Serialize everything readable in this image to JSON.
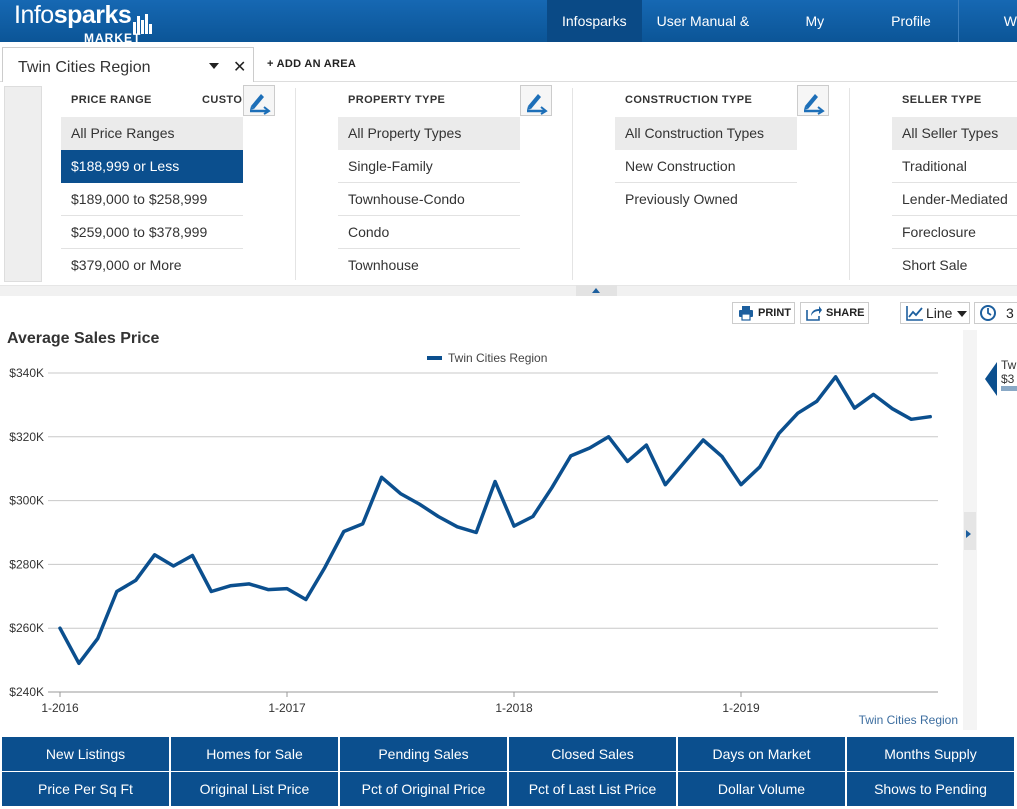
{
  "header": {
    "logo": {
      "part1": "Info",
      "part2": "sparks",
      "sub": "MARKET"
    },
    "nav": [
      {
        "label": "Infosparks",
        "active": true
      },
      {
        "label": "User Manual & FAQ",
        "active": false
      },
      {
        "label": "My Areas",
        "active": false
      },
      {
        "label": "Profile",
        "active": false
      },
      {
        "label": "W",
        "active": false
      }
    ]
  },
  "area_bar": {
    "selected_area": "Twin Cities Region",
    "add_area_label": "+ ADD AN AREA"
  },
  "filters": {
    "price_range": {
      "heading": "PRICE RANGE",
      "custom_label": "CUSTOM",
      "options": [
        "All Price Ranges",
        "$188,999 or Less",
        "$189,000 to $258,999",
        "$259,000 to $378,999",
        "$379,000 or More"
      ],
      "selected_index": 1
    },
    "property_type": {
      "heading": "PROPERTY TYPE",
      "options": [
        "All Property Types",
        "Single-Family",
        "Townhouse-Condo",
        "Condo",
        "Townhouse"
      ]
    },
    "construction_type": {
      "heading": "CONSTRUCTION TYPE",
      "options": [
        "All Construction Types",
        "New Construction",
        "Previously Owned"
      ]
    },
    "seller_type": {
      "heading": "SELLER TYPE",
      "options": [
        "All Seller Types",
        "Traditional",
        "Lender-Mediated",
        "Foreclosure",
        "Short Sale"
      ]
    }
  },
  "toolbar": {
    "print_label": "PRINT",
    "share_label": "SHARE",
    "chart_type_label": "Line",
    "period_label": "3"
  },
  "tooltip": {
    "series": "Tw",
    "value": "$3"
  },
  "chart_data": {
    "type": "line",
    "title": "Average Sales Price",
    "legend": "Twin Cities Region",
    "legend_position": "top-center",
    "source_label": "Twin Cities Region",
    "ylim": [
      240000,
      340000
    ],
    "y_ticks": [
      240000,
      260000,
      280000,
      300000,
      320000,
      340000
    ],
    "y_tick_labels": [
      "$240K",
      "$260K",
      "$280K",
      "$300K",
      "$320K",
      "$340K"
    ],
    "x_tick_labels": [
      "1-2016",
      "1-2017",
      "1-2018",
      "1-2019"
    ],
    "x_tick_months": [
      0,
      12,
      24,
      36
    ],
    "grid": true,
    "color": "#0b4f8e",
    "series": [
      {
        "name": "Twin Cities Region",
        "values": [
          260000,
          249000,
          256800,
          271500,
          275000,
          283000,
          279500,
          282800,
          271500,
          273300,
          273900,
          272100,
          272400,
          269000,
          279000,
          290300,
          292700,
          307300,
          302200,
          298900,
          295000,
          291800,
          290000,
          306000,
          292000,
          295000,
          304000,
          314000,
          316500,
          320000,
          312300,
          317400,
          305000,
          312000,
          319000,
          313800,
          305000,
          310600,
          321000,
          327400,
          331100,
          338800,
          329000,
          333300,
          328800,
          325500,
          326300
        ]
      }
    ]
  },
  "metrics": {
    "row1": [
      "New Listings",
      "Homes for Sale",
      "Pending Sales",
      "Closed Sales",
      "Days on Market",
      "Months Supply"
    ],
    "row2": [
      "Price Per Sq Ft",
      "Original List Price",
      "Pct of Original Price",
      "Pct of Last List Price",
      "Dollar Volume",
      "Shows to Pending"
    ]
  }
}
